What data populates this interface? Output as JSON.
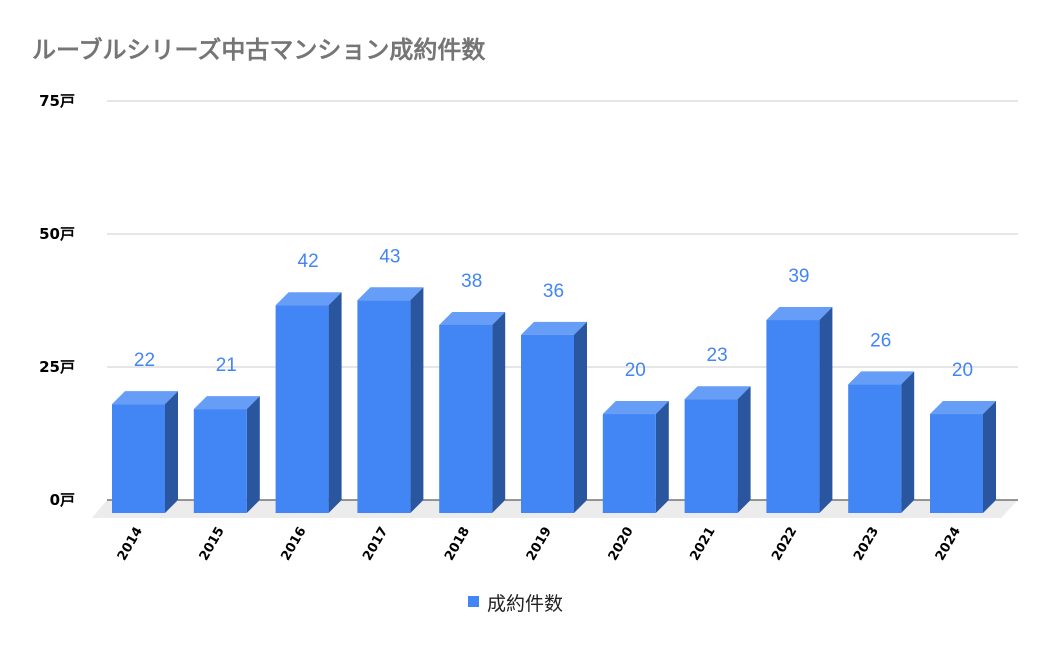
{
  "chart_data": {
    "type": "bar",
    "title": "ルーブルシリーズ中古マンション成約件数",
    "xlabel": "",
    "ylabel": "",
    "categories": [
      "2014",
      "2015",
      "2016",
      "2017",
      "2018",
      "2019",
      "2020",
      "2021",
      "2022",
      "2023",
      "2024"
    ],
    "series": [
      {
        "name": "成約件数",
        "values": [
          22,
          21,
          42,
          43,
          38,
          36,
          20,
          23,
          39,
          26,
          20
        ],
        "color": "#4285f4"
      }
    ],
    "ylim": [
      0,
      75
    ],
    "yticks": [
      0,
      25,
      50,
      75
    ],
    "ytick_labels": [
      "0戸",
      "25戸",
      "50戸",
      "75戸"
    ],
    "grid": true,
    "legend_position": "bottom",
    "style": "3d-column",
    "data_labels": true
  },
  "colors": {
    "bar_front": "#4285f4",
    "bar_top": "#669df6",
    "bar_side": "#2a56a0",
    "floor": "#ececec",
    "grid": "#cccccc",
    "title": "#757575",
    "label": "#4285f4"
  }
}
